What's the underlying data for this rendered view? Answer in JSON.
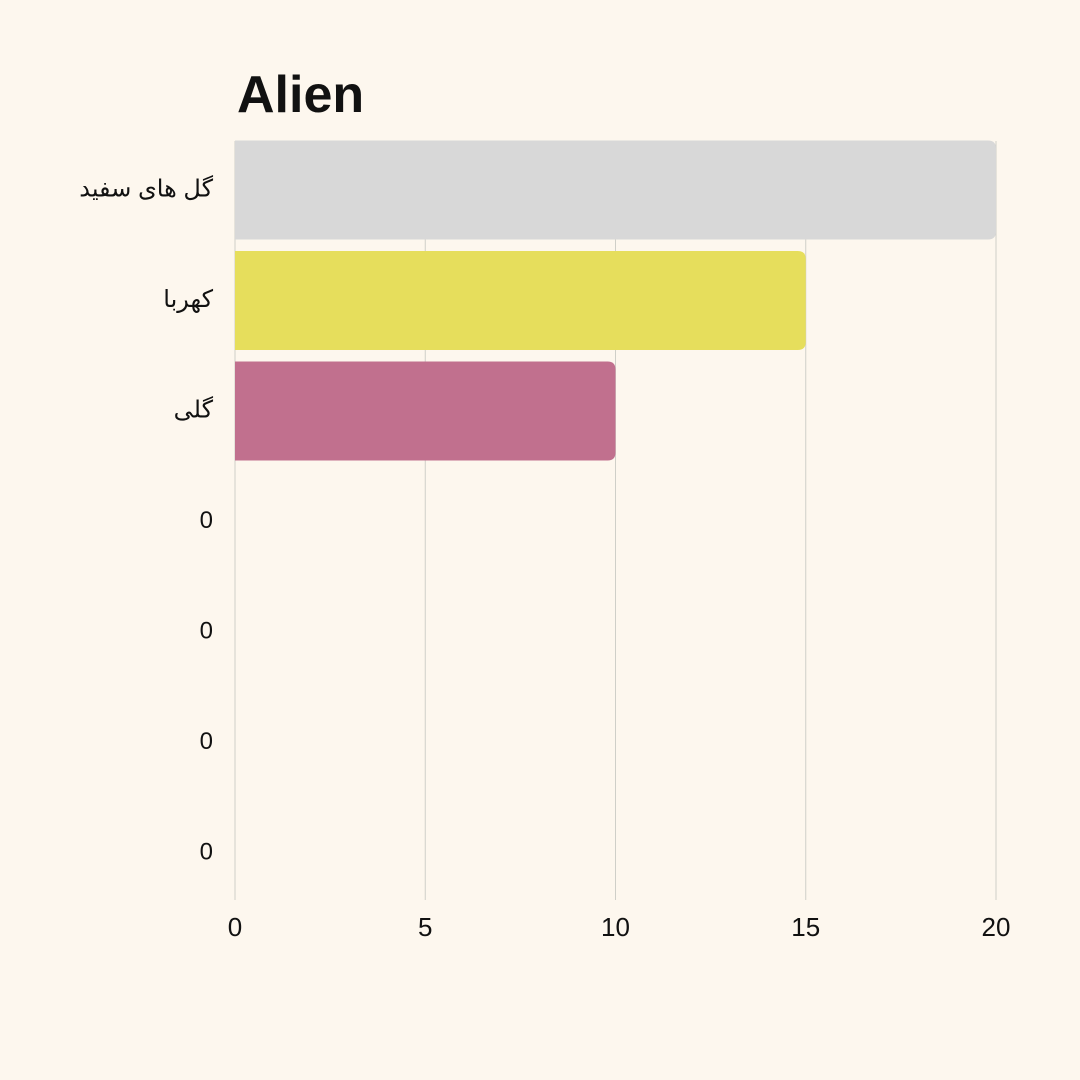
{
  "chart_data": {
    "type": "bar",
    "orientation": "horizontal",
    "title": "Alien",
    "categories": [
      "گل های سفید",
      "کهربا",
      "گلی",
      "0",
      "0",
      "0",
      "0"
    ],
    "values": [
      20,
      15,
      10,
      0,
      0,
      0,
      0
    ],
    "colors": [
      "#d8d8d8",
      "#e6de5c",
      "#c1708e"
    ],
    "xlim": [
      0,
      20
    ],
    "xticks": [
      0,
      5,
      10,
      15,
      20
    ],
    "grid": true
  }
}
